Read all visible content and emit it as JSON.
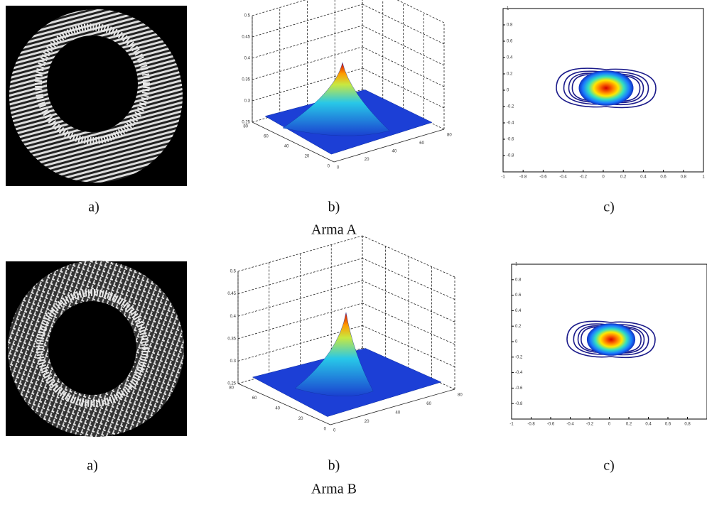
{
  "rows": [
    {
      "title": "Arma A",
      "image_label": "a)",
      "surface_label": "b)",
      "contour_label": "c)",
      "surface_zticks": [
        "0.5",
        "0.45",
        "0.4",
        "0.35",
        "0.3",
        "0.25"
      ],
      "surface_left_ticks": [
        "80",
        "60",
        "40",
        "20",
        "0"
      ],
      "surface_right_ticks": [
        "0",
        "20",
        "40",
        "60",
        "80"
      ],
      "contour_xticks": [
        "-1",
        "-0.8",
        "-0.6",
        "-0.4",
        "-0.2",
        "0",
        "0.2",
        "0.4",
        "0.6",
        "0.8",
        "1"
      ],
      "contour_yticks": [
        "1",
        "0.8",
        "0.6",
        "0.4",
        "0.2",
        "0",
        "-0.2",
        "-0.4",
        "-0.6",
        "-0.8"
      ]
    },
    {
      "title": "Arma B",
      "image_label": "a)",
      "surface_label": "b)",
      "contour_label": "c)",
      "surface_zticks": [
        "0.5",
        "0.45",
        "0.4",
        "0.35",
        "0.3",
        "0.25"
      ],
      "surface_left_ticks": [
        "80",
        "60",
        "40",
        "20",
        "0"
      ],
      "surface_right_ticks": [
        "0",
        "20",
        "40",
        "60",
        "80"
      ],
      "contour_xticks": [
        "-1",
        "-0.8",
        "-0.6",
        "-0.4",
        "-0.2",
        "0",
        "0.2",
        "0.4",
        "0.6",
        "0.8"
      ],
      "contour_yticks": [
        "1",
        "0.8",
        "0.6",
        "0.4",
        "0.2",
        "0",
        "-0.2",
        "-0.4",
        "-0.6",
        "-0.8"
      ]
    }
  ]
}
